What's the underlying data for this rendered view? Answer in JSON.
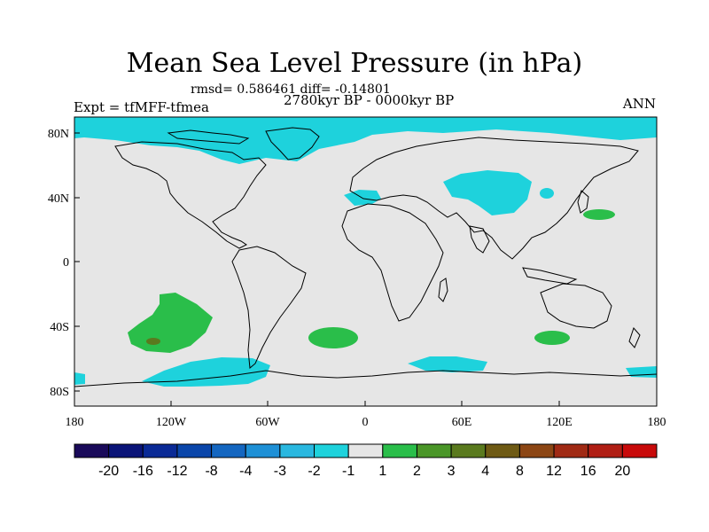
{
  "title": "Mean Sea Level Pressure (in hPa)",
  "stats": "rmsd= 0.586461 diff= -0.14801",
  "period": "2780kyr BP - 0000kyr BP",
  "experiment": "Expt = tfMFF-tfmea",
  "season": "ANN",
  "lat_ticks": [
    "80N",
    "40N",
    "0",
    "40S",
    "80S"
  ],
  "lon_ticks": [
    "180",
    "120W",
    "60W",
    "0",
    "60E",
    "120E",
    "180"
  ],
  "colorbar": {
    "labels": [
      "-20",
      "-16",
      "-12",
      "-8",
      "-4",
      "-3",
      "-2",
      "-1",
      "1",
      "2",
      "3",
      "4",
      "8",
      "12",
      "16",
      "20"
    ],
    "colors": [
      "#1a0a5a",
      "#0a1478",
      "#0a2a96",
      "#0a46aa",
      "#1466c0",
      "#1e90d6",
      "#2ab8e0",
      "#1ed2dc",
      "#e6e6e6",
      "#2abe4a",
      "#4a9628",
      "#5a7a1e",
      "#6e5a14",
      "#8c4614",
      "#a02a14",
      "#b01e14",
      "#c80a0a"
    ]
  },
  "colors": {
    "background": "#e6e6e6",
    "negative_anomaly": "#1ed2dc",
    "positive_anomaly": "#2abe4a",
    "strong_positive": "#5a7a1e"
  }
}
